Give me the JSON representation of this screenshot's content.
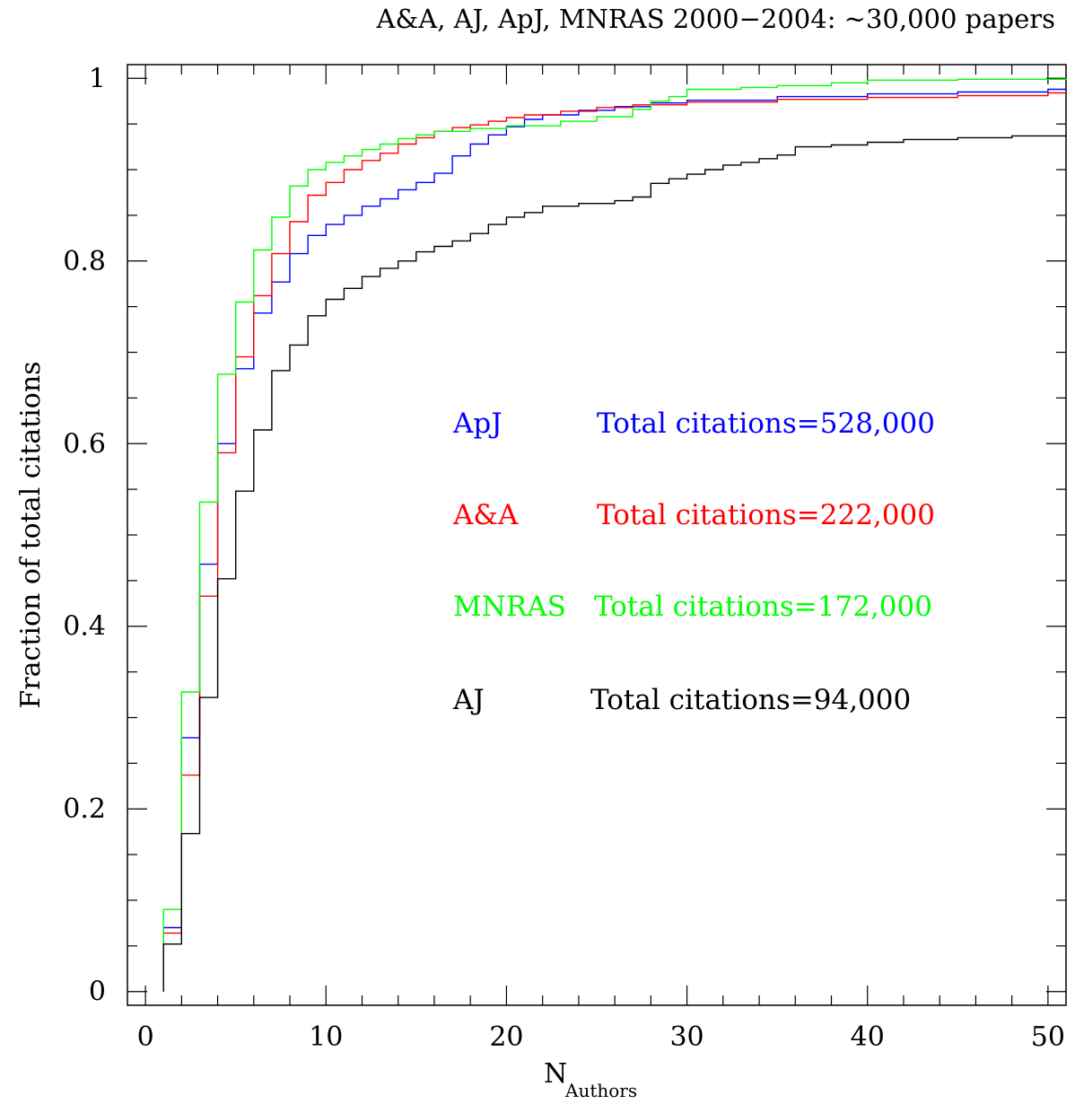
{
  "chart_data": {
    "type": "line",
    "title": "A&A, AJ, ApJ, MNRAS 2000−2004: ~30,000 papers",
    "xlabel_main": "N",
    "xlabel_sub": "Authors",
    "ylabel": "Fraction of total citations",
    "xlim": [
      -1,
      51
    ],
    "ylim": [
      -0.015,
      1.015
    ],
    "x_ticks": [
      0,
      10,
      20,
      30,
      40,
      50
    ],
    "y_ticks": [
      0,
      0.2,
      0.4,
      0.6,
      0.8,
      1
    ],
    "x_tick_labels": [
      "0",
      "10",
      "20",
      "30",
      "40",
      "50"
    ],
    "y_tick_labels": [
      "0",
      "0.2",
      "0.4",
      "0.6",
      "0.8",
      "1"
    ],
    "grid": false,
    "step": true,
    "series": [
      {
        "name": "ApJ",
        "color": "#0000ff",
        "annotation": "Total citations=528,000",
        "points": [
          [
            1,
            0
          ],
          [
            1,
            0.07
          ],
          [
            2,
            0.073
          ],
          [
            2,
            0.278
          ],
          [
            3,
            0.28
          ],
          [
            3,
            0.468
          ],
          [
            4,
            0.47
          ],
          [
            4,
            0.6
          ],
          [
            5,
            0.6
          ],
          [
            5,
            0.682
          ],
          [
            6,
            0.685
          ],
          [
            6,
            0.743
          ],
          [
            7,
            0.745
          ],
          [
            7,
            0.777
          ],
          [
            8,
            0.78
          ],
          [
            8,
            0.808
          ],
          [
            9,
            0.81
          ],
          [
            9,
            0.828
          ],
          [
            10,
            0.83
          ],
          [
            10,
            0.84
          ],
          [
            11,
            0.842
          ],
          [
            11,
            0.85
          ],
          [
            12,
            0.853
          ],
          [
            12,
            0.86
          ],
          [
            13,
            0.862
          ],
          [
            13,
            0.868
          ],
          [
            14,
            0.872
          ],
          [
            14,
            0.878
          ],
          [
            15,
            0.88
          ],
          [
            15,
            0.886
          ],
          [
            16,
            0.889
          ],
          [
            16,
            0.896
          ],
          [
            17,
            0.905
          ],
          [
            17,
            0.915
          ],
          [
            18,
            0.922
          ],
          [
            18,
            0.928
          ],
          [
            19,
            0.933
          ],
          [
            19,
            0.938
          ],
          [
            20,
            0.942
          ],
          [
            20,
            0.947
          ],
          [
            21,
            0.951
          ],
          [
            21,
            0.955
          ],
          [
            22,
            0.957
          ],
          [
            22,
            0.96
          ],
          [
            24,
            0.963
          ],
          [
            24,
            0.965
          ],
          [
            26,
            0.967
          ],
          [
            26,
            0.969
          ],
          [
            28,
            0.971
          ],
          [
            28,
            0.973
          ],
          [
            30,
            0.976
          ],
          [
            35,
            0.98
          ],
          [
            40,
            0.983
          ],
          [
            45,
            0.985
          ],
          [
            50,
            0.988
          ],
          [
            51,
            0.989
          ]
        ]
      },
      {
        "name": "A&A",
        "color": "#ff0000",
        "annotation": "Total citations=222,000",
        "points": [
          [
            1,
            0
          ],
          [
            1,
            0.064
          ],
          [
            2,
            0.066
          ],
          [
            2,
            0.237
          ],
          [
            3,
            0.24
          ],
          [
            3,
            0.433
          ],
          [
            4,
            0.437
          ],
          [
            4,
            0.59
          ],
          [
            5,
            0.592
          ],
          [
            5,
            0.695
          ],
          [
            6,
            0.698
          ],
          [
            6,
            0.762
          ],
          [
            7,
            0.765
          ],
          [
            7,
            0.808
          ],
          [
            8,
            0.81
          ],
          [
            8,
            0.843
          ],
          [
            9,
            0.846
          ],
          [
            9,
            0.872
          ],
          [
            10,
            0.875
          ],
          [
            10,
            0.886
          ],
          [
            11,
            0.888
          ],
          [
            11,
            0.9
          ],
          [
            12,
            0.902
          ],
          [
            12,
            0.91
          ],
          [
            13,
            0.912
          ],
          [
            13,
            0.918
          ],
          [
            14,
            0.921
          ],
          [
            14,
            0.928
          ],
          [
            15,
            0.931
          ],
          [
            15,
            0.935
          ],
          [
            16,
            0.938
          ],
          [
            16,
            0.942
          ],
          [
            17,
            0.944
          ],
          [
            17,
            0.946
          ],
          [
            18,
            0.947
          ],
          [
            18,
            0.949
          ],
          [
            19,
            0.951
          ],
          [
            19,
            0.953
          ],
          [
            20,
            0.955
          ],
          [
            20,
            0.957
          ],
          [
            21,
            0.958
          ],
          [
            21,
            0.96
          ],
          [
            23,
            0.962
          ],
          [
            23,
            0.964
          ],
          [
            25,
            0.966
          ],
          [
            25,
            0.968
          ],
          [
            27,
            0.97
          ],
          [
            27,
            0.971
          ],
          [
            30,
            0.974
          ],
          [
            35,
            0.977
          ],
          [
            40,
            0.979
          ],
          [
            45,
            0.981
          ],
          [
            50,
            0.984
          ],
          [
            51,
            0.984
          ]
        ]
      },
      {
        "name": "MNRAS",
        "color": "#00ff00",
        "annotation": "Total citations=172,000",
        "points": [
          [
            1,
            0
          ],
          [
            1,
            0.09
          ],
          [
            2,
            0.1
          ],
          [
            2,
            0.328
          ],
          [
            3,
            0.332
          ],
          [
            3,
            0.536
          ],
          [
            4,
            0.54
          ],
          [
            4,
            0.676
          ],
          [
            5,
            0.68
          ],
          [
            5,
            0.755
          ],
          [
            6,
            0.758
          ],
          [
            6,
            0.812
          ],
          [
            7,
            0.815
          ],
          [
            7,
            0.848
          ],
          [
            8,
            0.852
          ],
          [
            8,
            0.882
          ],
          [
            9,
            0.885
          ],
          [
            9,
            0.9
          ],
          [
            10,
            0.903
          ],
          [
            10,
            0.908
          ],
          [
            11,
            0.91
          ],
          [
            11,
            0.915
          ],
          [
            12,
            0.918
          ],
          [
            12,
            0.922
          ],
          [
            13,
            0.925
          ],
          [
            13,
            0.928
          ],
          [
            14,
            0.93
          ],
          [
            14,
            0.934
          ],
          [
            15,
            0.936
          ],
          [
            15,
            0.938
          ],
          [
            16,
            0.94
          ],
          [
            16,
            0.942
          ],
          [
            18,
            0.944
          ],
          [
            18,
            0.945
          ],
          [
            20,
            0.947
          ],
          [
            20,
            0.948
          ],
          [
            23,
            0.952
          ],
          [
            23,
            0.953
          ],
          [
            25,
            0.955
          ],
          [
            25,
            0.958
          ],
          [
            27,
            0.96
          ],
          [
            27,
            0.966
          ],
          [
            28,
            0.975
          ],
          [
            29,
            0.98
          ],
          [
            30,
            0.985
          ],
          [
            30,
            0.988
          ],
          [
            33,
            0.99
          ],
          [
            35,
            0.992
          ],
          [
            38,
            0.995
          ],
          [
            40,
            0.998
          ],
          [
            45,
            0.999
          ],
          [
            51,
            1.0
          ]
        ]
      },
      {
        "name": "AJ",
        "color": "#000000",
        "annotation": "Total citations=94,000",
        "points": [
          [
            1,
            0
          ],
          [
            1,
            0.052
          ],
          [
            2,
            0.055
          ],
          [
            2,
            0.173
          ],
          [
            3,
            0.176
          ],
          [
            3,
            0.322
          ],
          [
            4,
            0.328
          ],
          [
            4,
            0.452
          ],
          [
            5,
            0.456
          ],
          [
            5,
            0.548
          ],
          [
            6,
            0.553
          ],
          [
            6,
            0.615
          ],
          [
            7,
            0.62
          ],
          [
            7,
            0.68
          ],
          [
            8,
            0.683
          ],
          [
            8,
            0.708
          ],
          [
            9,
            0.71
          ],
          [
            9,
            0.74
          ],
          [
            10,
            0.745
          ],
          [
            10,
            0.758
          ],
          [
            11,
            0.762
          ],
          [
            11,
            0.77
          ],
          [
            12,
            0.773
          ],
          [
            12,
            0.783
          ],
          [
            13,
            0.785
          ],
          [
            13,
            0.792
          ],
          [
            14,
            0.797
          ],
          [
            14,
            0.8
          ],
          [
            15,
            0.803
          ],
          [
            15,
            0.81
          ],
          [
            16,
            0.813
          ],
          [
            16,
            0.816
          ],
          [
            17,
            0.818
          ],
          [
            17,
            0.822
          ],
          [
            18,
            0.826
          ],
          [
            18,
            0.83
          ],
          [
            19,
            0.835
          ],
          [
            19,
            0.84
          ],
          [
            20,
            0.845
          ],
          [
            20,
            0.848
          ],
          [
            21,
            0.85
          ],
          [
            21,
            0.853
          ],
          [
            22,
            0.858
          ],
          [
            22,
            0.86
          ],
          [
            24,
            0.862
          ],
          [
            24,
            0.863
          ],
          [
            26,
            0.866
          ],
          [
            27,
            0.87
          ],
          [
            28,
            0.876
          ],
          [
            28,
            0.885
          ],
          [
            29,
            0.89
          ],
          [
            30,
            0.895
          ],
          [
            31,
            0.9
          ],
          [
            32,
            0.905
          ],
          [
            33,
            0.908
          ],
          [
            34,
            0.912
          ],
          [
            35,
            0.916
          ],
          [
            36,
            0.92
          ],
          [
            36,
            0.925
          ],
          [
            38,
            0.927
          ],
          [
            40,
            0.93
          ],
          [
            42,
            0.933
          ],
          [
            45,
            0.935
          ],
          [
            48,
            0.937
          ],
          [
            51,
            0.938
          ]
        ]
      }
    ]
  }
}
